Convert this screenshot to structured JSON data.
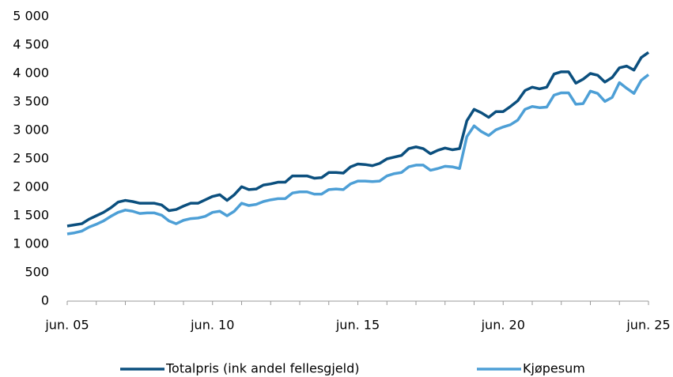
{
  "chart_data": {
    "type": "line",
    "categories": [
      "jun. 05",
      null,
      null,
      null,
      null,
      null,
      null,
      null,
      null,
      null,
      null,
      null,
      null,
      null,
      null,
      null,
      null,
      null,
      null,
      null,
      "jun. 10",
      null,
      null,
      null,
      null,
      null,
      null,
      null,
      null,
      null,
      null,
      null,
      null,
      null,
      null,
      null,
      null,
      null,
      null,
      null,
      "jun. 15",
      null,
      null,
      null,
      null,
      null,
      null,
      null,
      null,
      null,
      null,
      null,
      null,
      null,
      null,
      null,
      null,
      null,
      null,
      null,
      "jun. 20",
      null,
      null,
      null,
      null,
      null,
      null,
      null,
      null,
      null,
      null,
      null,
      null,
      null,
      null,
      null,
      null,
      null,
      null,
      null,
      "jun. 25"
    ],
    "series": [
      {
        "name": "Totalpris (ink andel fellesgjeld)",
        "color": "#0b4f7e",
        "values": [
          1320,
          1340,
          1360,
          1440,
          1500,
          1560,
          1640,
          1740,
          1770,
          1750,
          1720,
          1720,
          1720,
          1690,
          1590,
          1610,
          1670,
          1720,
          1720,
          1780,
          1840,
          1870,
          1770,
          1870,
          2010,
          1960,
          1970,
          2040,
          2060,
          2090,
          2090,
          2200,
          2200,
          2200,
          2160,
          2170,
          2260,
          2260,
          2250,
          2360,
          2410,
          2400,
          2380,
          2420,
          2500,
          2530,
          2560,
          2680,
          2710,
          2680,
          2590,
          2650,
          2690,
          2660,
          2680,
          3170,
          3370,
          3310,
          3230,
          3330,
          3330,
          3420,
          3520,
          3700,
          3760,
          3730,
          3760,
          3990,
          4030,
          4030,
          3830,
          3900,
          4000,
          3970,
          3850,
          3930,
          4100,
          4130,
          4060,
          4280,
          4370
        ]
      },
      {
        "name": "Kjøpesum",
        "color": "#4d9fd6",
        "values": [
          1180,
          1200,
          1230,
          1300,
          1350,
          1410,
          1490,
          1560,
          1600,
          1580,
          1540,
          1550,
          1550,
          1510,
          1410,
          1360,
          1420,
          1450,
          1460,
          1490,
          1560,
          1580,
          1500,
          1580,
          1720,
          1680,
          1700,
          1750,
          1780,
          1800,
          1800,
          1900,
          1920,
          1920,
          1880,
          1880,
          1960,
          1970,
          1960,
          2060,
          2110,
          2110,
          2100,
          2110,
          2200,
          2240,
          2260,
          2360,
          2390,
          2390,
          2300,
          2330,
          2370,
          2360,
          2330,
          2890,
          3080,
          2980,
          2910,
          3010,
          3060,
          3100,
          3180,
          3370,
          3420,
          3400,
          3410,
          3620,
          3660,
          3660,
          3460,
          3470,
          3690,
          3650,
          3510,
          3580,
          3840,
          3740,
          3650,
          3880,
          3980
        ]
      }
    ],
    "ylim": [
      0,
      5000
    ],
    "yticks": [
      0,
      500,
      {
        "value": 1000,
        "label": "1 000"
      },
      {
        "value": 1500,
        "label": "1 500"
      },
      {
        "value": 2000,
        "label": "2 000"
      },
      {
        "value": 2500,
        "label": "2 500"
      },
      {
        "value": 3000,
        "label": "3 000"
      },
      {
        "value": 3500,
        "label": "3 500"
      },
      {
        "value": 4000,
        "label": "4 000"
      },
      {
        "value": 4500,
        "label": "4 500"
      },
      {
        "value": 5000,
        "label": "5 000"
      }
    ],
    "grid": false,
    "legend": "bottom"
  }
}
